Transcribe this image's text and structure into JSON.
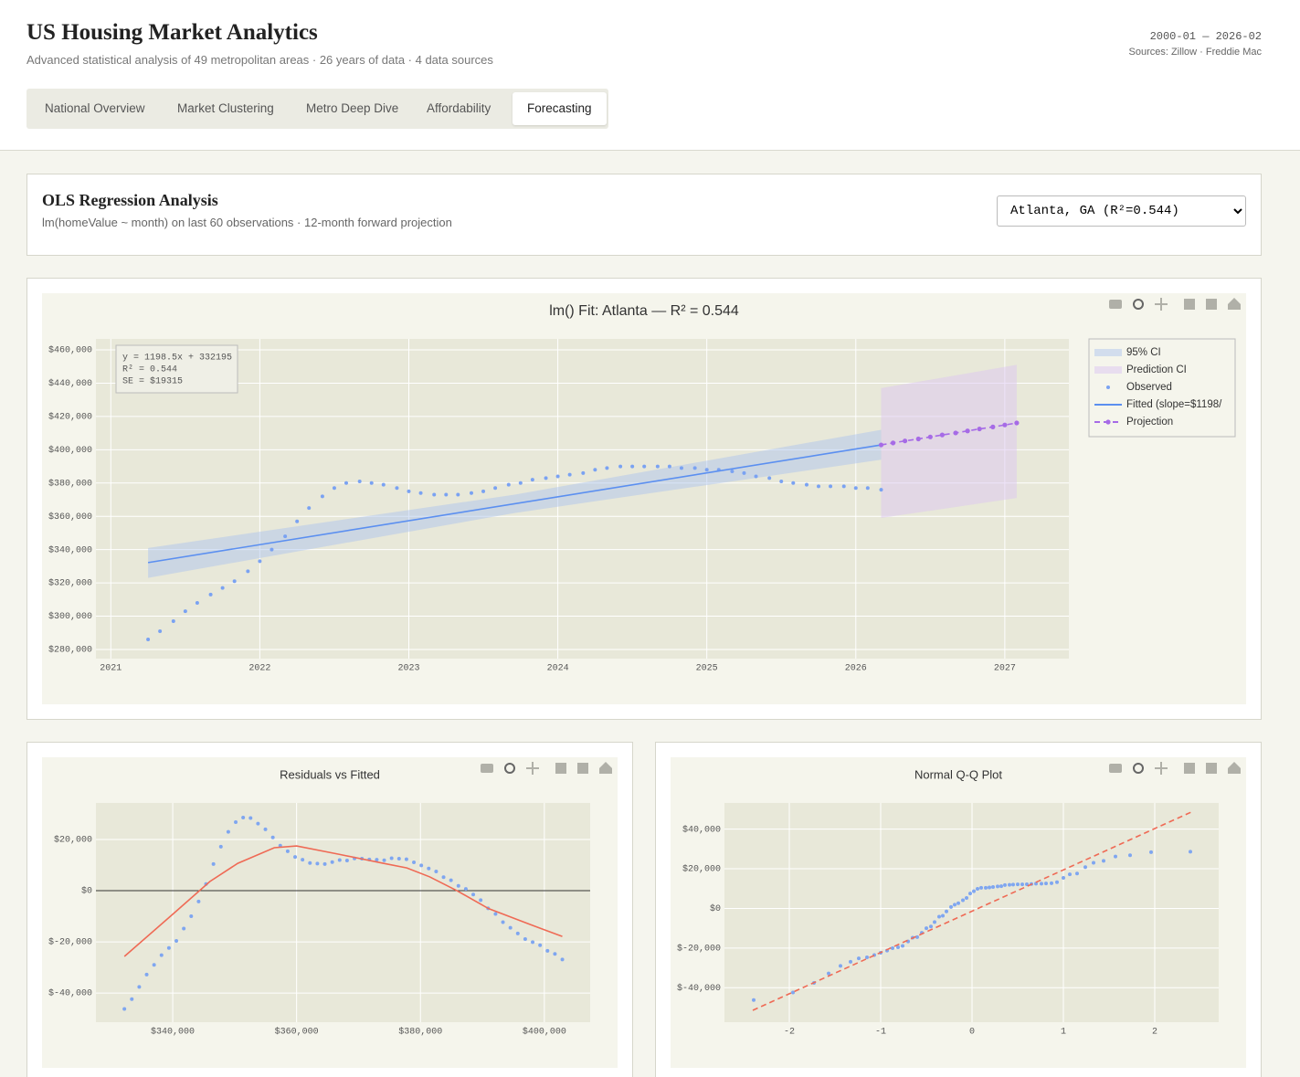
{
  "header": {
    "title": "US Housing Market Analytics",
    "subtitle": "Advanced statistical analysis of 49 metropolitan areas · 26 years of data · 4 data sources",
    "date_range": "2000-01 — 2026-02",
    "sources": "Sources: Zillow · Freddie Mac"
  },
  "tabs": [
    "National Overview",
    "Market Clustering",
    "Metro Deep Dive",
    "Affordability",
    "Forecasting"
  ],
  "active_tab": 4,
  "panel": {
    "title": "OLS Regression Analysis",
    "subtitle": "lm(homeValue ~ month) on last 60 observations · 12-month forward projection",
    "select": "Atlanta, GA (R²=0.544)"
  },
  "chart_data": [
    {
      "type": "scatter",
      "title": "lm() Fit: Atlanta — R² = 0.544",
      "annotation": [
        "y = 1198.5x + 332195",
        "R² = 0.544",
        "SE = $19315"
      ],
      "xlim": [
        2020.9,
        2027.43
      ],
      "xticks": [
        2021,
        2022,
        2023,
        2024,
        2025,
        2026,
        2027
      ],
      "ylim": [
        274500,
        466600
      ],
      "yticks": [
        {
          "value": 280000,
          "label": "$280,000"
        },
        {
          "value": 300000,
          "label": "$300,000"
        },
        {
          "value": 320000,
          "label": "$320,000"
        },
        {
          "value": 340000,
          "label": "$340,000"
        },
        {
          "value": 360000,
          "label": "$360,000"
        },
        {
          "value": 380000,
          "label": "$380,000"
        },
        {
          "value": 400000,
          "label": "$400,000"
        },
        {
          "value": 420000,
          "label": "$420,000"
        },
        {
          "value": 440000,
          "label": "$440,000"
        },
        {
          "value": 460000,
          "label": "$460,000"
        }
      ],
      "grid": true,
      "legend": "right",
      "plot_bgcolor": "#e8e8d9",
      "paper_bgcolor": "#f5f5ec",
      "series": [
        {
          "name": "95% CI",
          "mode": "band",
          "color": "#a9c2f0",
          "opacity": 0.45,
          "x": [
            2021.25,
            2023.71,
            2026.17
          ],
          "lower": [
            323000,
            362000,
            394000
          ],
          "upper": [
            341000,
            373000,
            412000
          ]
        },
        {
          "name": "Prediction CI",
          "mode": "band",
          "color": "#dcc6f2",
          "opacity": 0.5,
          "x": [
            2026.17,
            2027.08
          ],
          "lower": [
            359000,
            371000
          ],
          "upper": [
            437000,
            451000
          ]
        },
        {
          "name": "Observed",
          "mode": "markers",
          "color": "#7aa2f2",
          "x": [
            2021.25,
            2021.33,
            2021.42,
            2021.5,
            2021.58,
            2021.67,
            2021.75,
            2021.83,
            2021.92,
            2022,
            2022.08,
            2022.17,
            2022.25,
            2022.33,
            2022.42,
            2022.5,
            2022.58,
            2022.67,
            2022.75,
            2022.83,
            2022.92,
            2023,
            2023.08,
            2023.17,
            2023.25,
            2023.33,
            2023.42,
            2023.5,
            2023.58,
            2023.67,
            2023.75,
            2023.83,
            2023.92,
            2024,
            2024.08,
            2024.17,
            2024.25,
            2024.33,
            2024.42,
            2024.5,
            2024.58,
            2024.67,
            2024.75,
            2024.83,
            2024.92,
            2025,
            2025.08,
            2025.17,
            2025.25,
            2025.33,
            2025.42,
            2025.5,
            2025.58,
            2025.67,
            2025.75,
            2025.83,
            2025.92,
            2026,
            2026.08,
            2026.17
          ],
          "values": [
            286000,
            291000,
            297000,
            303000,
            308000,
            313000,
            317000,
            321000,
            327000,
            333000,
            340000,
            348000,
            357000,
            365000,
            372000,
            377000,
            380000,
            381000,
            380000,
            379000,
            377000,
            375000,
            374000,
            373000,
            373000,
            373000,
            374000,
            375000,
            377000,
            379000,
            380000,
            382000,
            383000,
            384000,
            385000,
            386000,
            388000,
            389000,
            390000,
            390000,
            390000,
            390000,
            390000,
            389000,
            389000,
            388000,
            388000,
            387000,
            386000,
            384000,
            383000,
            381000,
            380000,
            379000,
            378000,
            378000,
            378000,
            377000,
            377000,
            376000
          ]
        },
        {
          "name": "Fitted (slope=$1198/",
          "mode": "line",
          "color": "#5b8ff0",
          "x": [
            2021.25,
            2026.17
          ],
          "values": [
            332195,
            402907
          ]
        },
        {
          "name": "Projection",
          "mode": "line+markers",
          "dash": true,
          "color": "#a66be6",
          "x": [
            2026.17,
            2026.25,
            2026.33,
            2026.42,
            2026.5,
            2026.58,
            2026.67,
            2026.75,
            2026.83,
            2026.92,
            2027,
            2027.08
          ],
          "values": [
            402907,
            404106,
            405304,
            406503,
            407701,
            408900,
            410098,
            411297,
            412495,
            413694,
            414892,
            416091
          ]
        }
      ]
    },
    {
      "type": "scatter",
      "title": "Residuals vs Fitted",
      "xlim": [
        327600,
        407400
      ],
      "xticks": [
        {
          "value": 340000,
          "label": "$340,000"
        },
        {
          "value": 360000,
          "label": "$360,000"
        },
        {
          "value": 380000,
          "label": "$380,000"
        },
        {
          "value": 400000,
          "label": "$400,000"
        }
      ],
      "ylim": [
        -51400,
        34300
      ],
      "yticks": [
        {
          "value": -40000,
          "label": "$-40,000"
        },
        {
          "value": -20000,
          "label": "$-20,000"
        },
        {
          "value": 0,
          "label": "$0"
        },
        {
          "value": 20000,
          "label": "$20,000"
        }
      ],
      "grid": true,
      "zeroline": true,
      "plot_bgcolor": "#e8e8d9",
      "paper_bgcolor": "#f5f5ec",
      "series": [
        {
          "mode": "markers",
          "color": "#7fa6f0",
          "x": [
            332195,
            333394,
            334592,
            335791,
            336989,
            338188,
            339386,
            340585,
            341783,
            342982,
            344180,
            345379,
            346577,
            347776,
            348974,
            350173,
            351371,
            352570,
            353768,
            354967,
            356165,
            357364,
            358562,
            359761,
            360959,
            362158,
            363356,
            364555,
            365753,
            366952,
            368150,
            369349,
            370547,
            371746,
            372944,
            374143,
            375341,
            376540,
            377738,
            378937,
            380135,
            381334,
            382532,
            383731,
            384929,
            386128,
            387326,
            388525,
            389723,
            390922,
            392120,
            393319,
            394517,
            395716,
            396914,
            398113,
            399311,
            400510,
            401708,
            402907
          ],
          "values": [
            -46200,
            -42400,
            -37600,
            -32800,
            -29000,
            -25200,
            -22400,
            -19600,
            -14800,
            -10000,
            -4200,
            2600,
            10400,
            17200,
            23000,
            26800,
            28600,
            28400,
            26200,
            24000,
            20800,
            17600,
            15400,
            13200,
            12100,
            10800,
            10600,
            10400,
            11200,
            12000,
            11800,
            12600,
            12500,
            12200,
            12100,
            11900,
            12700,
            12500,
            12300,
            11100,
            9900,
            8700,
            7500,
            5300,
            4100,
            1900,
            700,
            -1500,
            -3700,
            -6900,
            -9100,
            -12300,
            -14500,
            -16700,
            -18900,
            -20100,
            -21300,
            -23500,
            -24700,
            -26900
          ]
        },
        {
          "mode": "line",
          "color": "#ef6a55",
          "x": [
            332200,
            340100,
            346000,
            350500,
            356400,
            360000,
            366700,
            374000,
            377800,
            381500,
            385900,
            391000,
            397700,
            402900
          ],
          "values": [
            -25700,
            -9000,
            3600,
            10700,
            16800,
            17500,
            14300,
            10700,
            8900,
            5400,
            0,
            -7000,
            -13200,
            -17900
          ]
        }
      ]
    },
    {
      "type": "scatter",
      "title": "Normal Q-Q Plot",
      "xlim": [
        -2.71,
        2.7
      ],
      "xticks": [
        -2,
        -1,
        0,
        1,
        2
      ],
      "ylim": [
        -57400,
        53200
      ],
      "yticks": [
        {
          "value": -40000,
          "label": "$-40,000"
        },
        {
          "value": -20000,
          "label": "$-20,000"
        },
        {
          "value": 0,
          "label": "$0"
        },
        {
          "value": 20000,
          "label": "$20,000"
        },
        {
          "value": 40000,
          "label": "$40,000"
        }
      ],
      "grid": true,
      "plot_bgcolor": "#e8e8d9",
      "paper_bgcolor": "#f5f5ec",
      "series": [
        {
          "mode": "markers",
          "color": "#7fa6f0",
          "x": [
            -2.39,
            -1.96,
            -1.73,
            -1.57,
            -1.44,
            -1.33,
            -1.24,
            -1.15,
            -1.07,
            -1.0,
            -0.93,
            -0.87,
            -0.81,
            -0.76,
            -0.7,
            -0.65,
            -0.6,
            -0.55,
            -0.5,
            -0.45,
            -0.41,
            -0.36,
            -0.32,
            -0.28,
            -0.23,
            -0.19,
            -0.15,
            -0.1,
            -0.06,
            -0.02,
            0.02,
            0.06,
            0.1,
            0.15,
            0.19,
            0.23,
            0.28,
            0.32,
            0.36,
            0.41,
            0.45,
            0.5,
            0.55,
            0.6,
            0.65,
            0.7,
            0.76,
            0.81,
            0.87,
            0.93,
            1.0,
            1.07,
            1.15,
            1.24,
            1.33,
            1.44,
            1.57,
            1.73,
            1.96,
            2.39
          ],
          "values": [
            -46200,
            -42400,
            -37600,
            -32800,
            -29000,
            -26900,
            -25200,
            -24700,
            -23500,
            -22400,
            -21300,
            -20100,
            -19600,
            -18900,
            -16700,
            -14800,
            -14500,
            -12300,
            -10000,
            -9100,
            -6900,
            -4200,
            -3700,
            -1500,
            700,
            1900,
            2600,
            4100,
            5300,
            7500,
            8700,
            9900,
            10400,
            10400,
            10600,
            10800,
            11100,
            11200,
            11800,
            11900,
            12000,
            12100,
            12100,
            12200,
            12300,
            12500,
            12500,
            12600,
            12700,
            13200,
            15400,
            17200,
            17600,
            20800,
            23000,
            24000,
            26200,
            26800,
            28400,
            28600
          ]
        },
        {
          "mode": "line",
          "dash": true,
          "color": "#ef6a55",
          "x": [
            -2.4,
            2.4
          ],
          "values": [
            -51400,
            48600
          ]
        }
      ]
    }
  ]
}
